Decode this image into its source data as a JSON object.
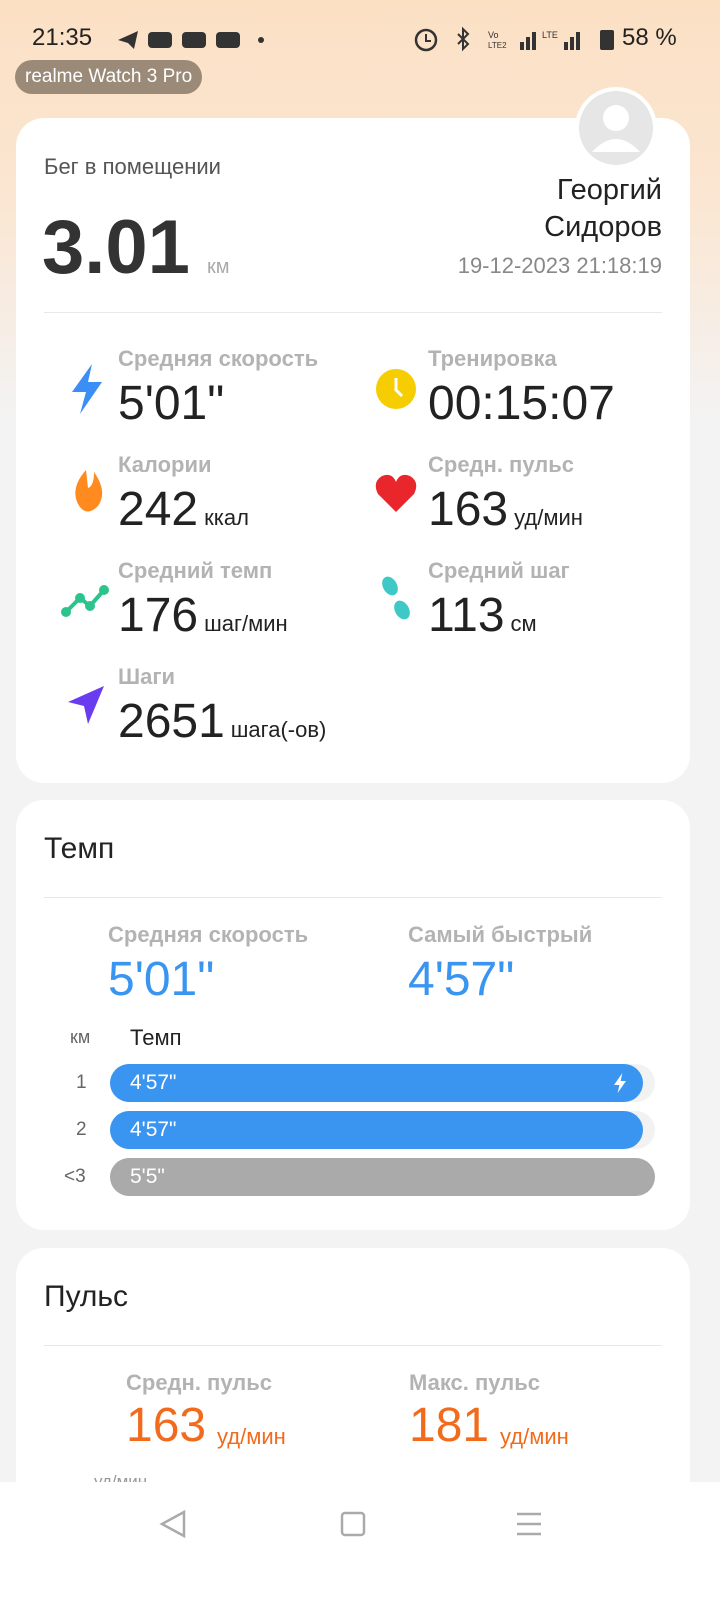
{
  "status_bar": {
    "time": "21:35",
    "battery": "58 %"
  },
  "device_badge": "realme Watch 3 Pro",
  "summary": {
    "activity": "Бег в помещении",
    "distance": "3.01",
    "distance_unit": "км",
    "first_name": "Георгий",
    "last_name": "Сидоров",
    "datetime": "19-12-2023 21:18:19",
    "stats": [
      {
        "label": "Средняя скорость",
        "value": "5'01\""
      },
      {
        "label": "Тренировка",
        "value": "00:15:07"
      },
      {
        "label": "Калории",
        "value": "242",
        "unit": "ккал"
      },
      {
        "label": "Средн. пульс",
        "value": "163",
        "unit": "уд/мин"
      },
      {
        "label": "Средний темп",
        "value": "176",
        "unit": "шаг/мин"
      },
      {
        "label": "Средний шаг",
        "value": "113",
        "unit": "см"
      },
      {
        "label": "Шаги",
        "value": "2651",
        "unit": "шага(-ов)"
      }
    ]
  },
  "pace": {
    "title": "Темп",
    "avg_label": "Средняя скорость",
    "avg_value": "5'01\"",
    "fastest_label": "Самый быстрый",
    "fastest_value": "4'57\"",
    "column_km": "км",
    "column_pace": "Темп",
    "splits": [
      {
        "km": "1",
        "pace": "4'57\""
      },
      {
        "km": "2",
        "pace": "4'57\""
      },
      {
        "km": "<3",
        "pace": "5'5\""
      }
    ]
  },
  "pulse": {
    "title": "Пульс",
    "avg_label": "Средн. пульс",
    "avg_value": "163",
    "avg_unit": "уд/мин",
    "max_label": "Макс. пульс",
    "max_value": "181",
    "max_unit": "уд/мин",
    "axis_label": "уд/мин"
  }
}
